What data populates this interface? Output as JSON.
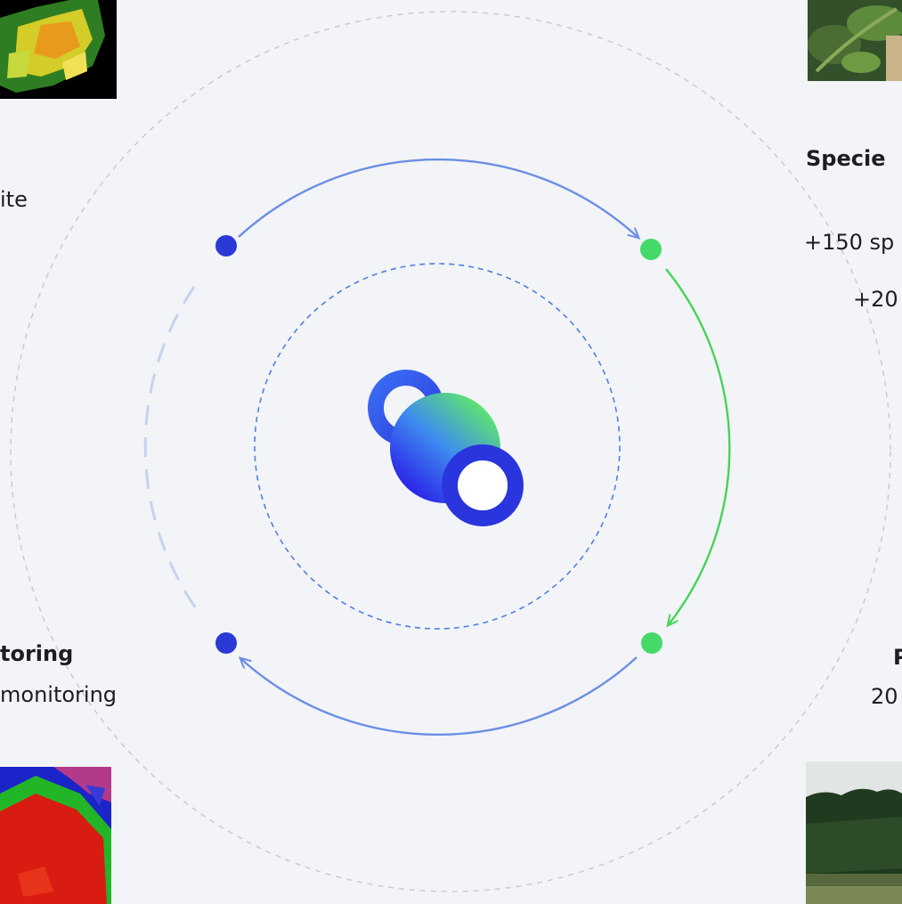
{
  "labels": {
    "satellite_fragment": "ite",
    "monitoring_title_fragment": "toring",
    "monitoring_text_fragment": "monitoring",
    "species_title_fragment": "Specie",
    "species_count_fragment": "+150 sp",
    "species_extra_fragment": "+20",
    "right_title_fragment": "P",
    "right_text_fragment": "20"
  },
  "nodes": {
    "top_left": {
      "color": "#2b39d6"
    },
    "top_right": {
      "color": "#45d96a"
    },
    "bottom_right": {
      "color": "#45d96a"
    },
    "bottom_left": {
      "color": "#2b39d6"
    }
  },
  "colors": {
    "blue_arrow": "#6a8fe4",
    "green_arrow": "#46d35a",
    "outer_ring": "#c9cbd1",
    "inner_ring": "#4f7fe2",
    "left_dashed": "#c5d2f2",
    "background": "#f3f4f7"
  },
  "images": {
    "top_left": "satellite-vegetation-map",
    "top_right": "leaf-photo",
    "bottom_left": "land-cover-heatmap",
    "bottom_right": "forest-landscape-photo"
  },
  "center": {
    "icon": "molecule-logo-icon"
  }
}
